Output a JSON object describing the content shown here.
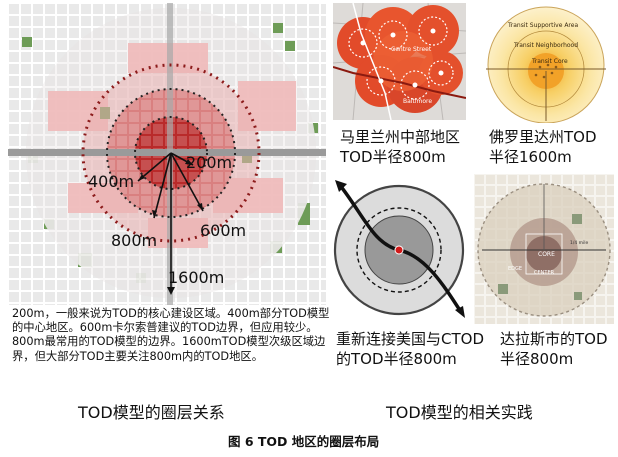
{
  "main_diagram": {
    "radius_labels": [
      "200m",
      "400m",
      "600m",
      "800m",
      "1600m"
    ]
  },
  "main_description": "200m，一般来说为TOD的核心建设区域。400m部分TOD模型的中心地区。600m卡尔索普建议的TOD边界，但应用较少。800m最常用的TOD模型的边界。1600mTOD模型次级区域边界，但大部分TOD主要关注800m内的TOD地区。",
  "left_caption": "TOD模型的圈层关系",
  "right_caption": "TOD模型的相关实践",
  "figure_caption": "图 6  TOD 地区的圈层布局",
  "cases": [
    {
      "line1": "马里兰州中部地区",
      "line2": "TOD半径800m"
    },
    {
      "line1": "佛罗里达州TOD",
      "line2": "半径1600m"
    },
    {
      "line1": "重新连接美国与CTOD",
      "line2": "的TOD半径800m"
    },
    {
      "line1": "达拉斯市的TOD",
      "line2": "半径800m"
    }
  ],
  "maryland_map": {
    "labels": [
      "Centre Street",
      "Baltimore"
    ]
  },
  "florida_diagram": {
    "ring_labels": [
      "Transit Supportive Area",
      "Transit Neighborhood",
      "Transit Core"
    ]
  },
  "dallas_plan": {
    "labels": [
      "CORE",
      "CENTER",
      "EDGE",
      "1/4 mile"
    ]
  },
  "colors": {
    "core": "#b71c1c",
    "ring_400": "#d45a5a",
    "ring_800": "#ecbcbc",
    "ring_1600": "#e8e4e4",
    "green_blocks": "#6b9a55"
  }
}
